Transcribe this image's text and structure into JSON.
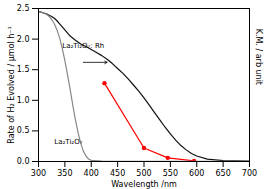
{
  "chart_data": {
    "type": "line",
    "xlabel": "Wavelength /nm",
    "ylabel": "Rate of H₂ Evolved / μmol h⁻¹",
    "y2label": "K.M. / arb unit",
    "xlim": [
      300,
      700
    ],
    "xticks": [
      300,
      350,
      400,
      450,
      500,
      550,
      600,
      650,
      700
    ],
    "ylim": [
      0.0,
      2.5
    ],
    "yticks": [
      {
        "value": 0.0,
        "label": "0.0"
      },
      0.5,
      {
        "value": 1.0,
        "label": "1.0"
      },
      1.5,
      {
        "value": 2.0,
        "label": "2.0"
      },
      2.5
    ],
    "y2lim": [
      0.0,
      2.5
    ],
    "y2ticks": [],
    "series": [
      {
        "color": "red",
        "marker": "circle",
        "axis": "y",
        "x": [
          425,
          500,
          545,
          595
        ],
        "values": [
          1.28,
          0.22,
          0.06,
          0.01
        ]
      },
      {
        "color": "#111111",
        "axis": "y2",
        "x": [
          300,
          305,
          308,
          312,
          316,
          320,
          325,
          330,
          335,
          340,
          345,
          350,
          360,
          370,
          380,
          390,
          400,
          410,
          420,
          430,
          440,
          450,
          460,
          470,
          480,
          490,
          500,
          510,
          520,
          530,
          540,
          550,
          560,
          570,
          580,
          590,
          600,
          620,
          650,
          700
        ],
        "values": [
          2.45,
          2.44,
          2.43,
          2.42,
          2.41,
          2.39,
          2.37,
          2.34,
          2.3,
          2.25,
          2.2,
          2.15,
          2.05,
          1.98,
          1.92,
          1.88,
          1.83,
          1.78,
          1.73,
          1.67,
          1.6,
          1.52,
          1.44,
          1.35,
          1.25,
          1.15,
          1.04,
          0.92,
          0.8,
          0.68,
          0.56,
          0.45,
          0.35,
          0.26,
          0.19,
          0.13,
          0.09,
          0.04,
          0.015,
          0.005
        ]
      },
      {
        "color": "#888888",
        "axis": "y2",
        "x": [
          300,
          305,
          308,
          312,
          316,
          320,
          325,
          330,
          335,
          340,
          345,
          350,
          355,
          360,
          365,
          370,
          375,
          380,
          385,
          390,
          395,
          400,
          420,
          450,
          500,
          600,
          700
        ],
        "values": [
          2.45,
          2.44,
          2.43,
          2.42,
          2.4,
          2.37,
          2.32,
          2.25,
          2.15,
          2.02,
          1.85,
          1.65,
          1.42,
          1.18,
          0.92,
          0.68,
          0.47,
          0.3,
          0.17,
          0.09,
          0.04,
          0.018,
          0.005,
          0.002,
          0.001,
          0.001,
          0.001
        ]
      }
    ],
    "annotations": [
      {
        "text": "La₂Ti₂O₇: Rh",
        "x": 345,
        "y": 1.85
      },
      {
        "text": "La₂Ti₂O₇",
        "x": 330,
        "y": 0.28
      }
    ],
    "arrows": [
      {
        "x1": 385,
        "x2": 430,
        "y": 1.62
      }
    ]
  }
}
